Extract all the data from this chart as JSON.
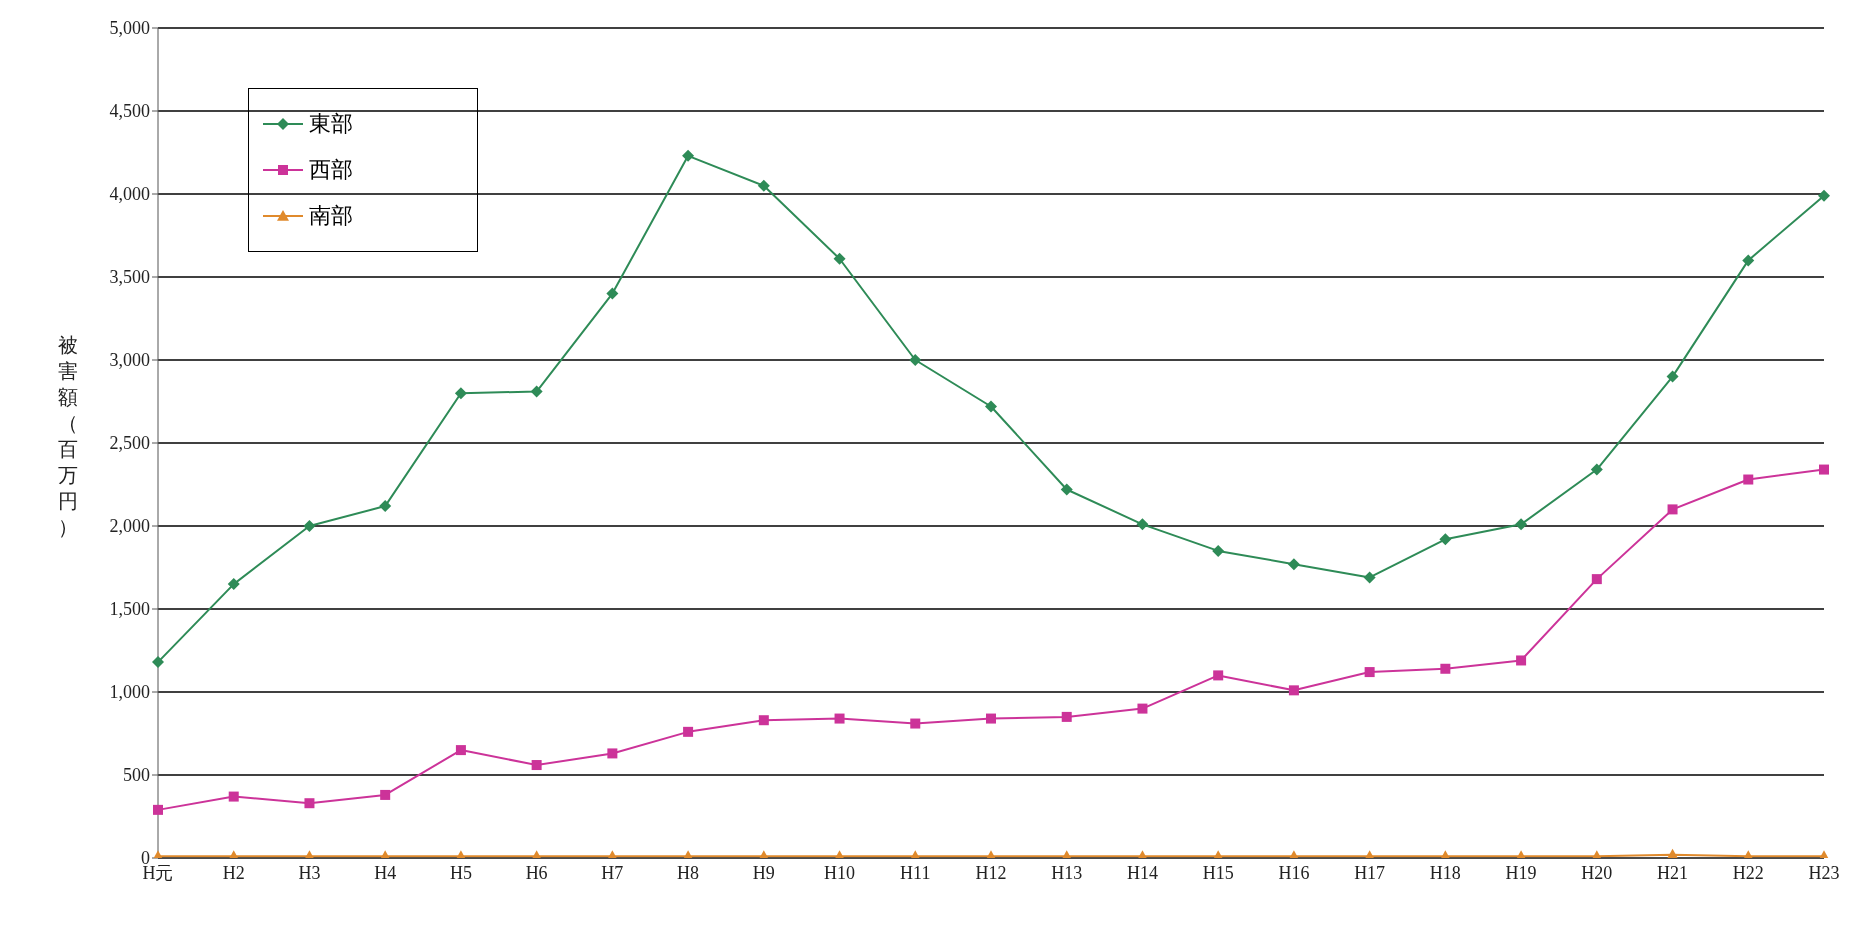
{
  "chart_data": {
    "type": "line",
    "ylabel": "被害額（百万円）",
    "categories": [
      "H元",
      "H2",
      "H3",
      "H4",
      "H5",
      "H6",
      "H7",
      "H8",
      "H9",
      "H10",
      "H11",
      "H12",
      "H13",
      "H14",
      "H15",
      "H16",
      "H17",
      "H18",
      "H19",
      "H20",
      "H21",
      "H22",
      "H23"
    ],
    "series": [
      {
        "name": "東部",
        "color": "#2e8b57",
        "marker": "diamond",
        "values": [
          1180,
          1650,
          2000,
          2120,
          2800,
          2810,
          3400,
          4230,
          4050,
          3610,
          3000,
          2720,
          2220,
          2010,
          1850,
          1770,
          1690,
          1920,
          2010,
          2340,
          2900,
          3600,
          3990
        ]
      },
      {
        "name": "西部",
        "color": "#cc3399",
        "marker": "square",
        "values": [
          290,
          370,
          330,
          380,
          650,
          560,
          630,
          760,
          830,
          840,
          810,
          840,
          850,
          900,
          1100,
          1010,
          1120,
          1140,
          1190,
          1680,
          2100,
          2280,
          2340
        ]
      },
      {
        "name": "南部",
        "color": "#e08a2c",
        "marker": "triangle",
        "values": [
          10,
          10,
          10,
          10,
          10,
          10,
          10,
          10,
          10,
          10,
          10,
          10,
          10,
          10,
          10,
          10,
          10,
          10,
          10,
          10,
          20,
          10,
          10
        ]
      }
    ],
    "ylim": [
      0,
      5000
    ],
    "yticks": [
      {
        "value": 0,
        "label": "0"
      },
      {
        "value": 500,
        "label": "500"
      },
      {
        "value": 1000,
        "label": "1,000"
      },
      {
        "value": 1500,
        "label": "1,500"
      },
      {
        "value": 2000,
        "label": "2,000"
      },
      {
        "value": 2500,
        "label": "2,500"
      },
      {
        "value": 3000,
        "label": "3,000"
      },
      {
        "value": 3500,
        "label": "3,500"
      },
      {
        "value": 4000,
        "label": "4,000"
      },
      {
        "value": 4500,
        "label": "4,500"
      },
      {
        "value": 5000,
        "label": "5,000"
      }
    ],
    "grid": "y",
    "legend": "top left"
  }
}
